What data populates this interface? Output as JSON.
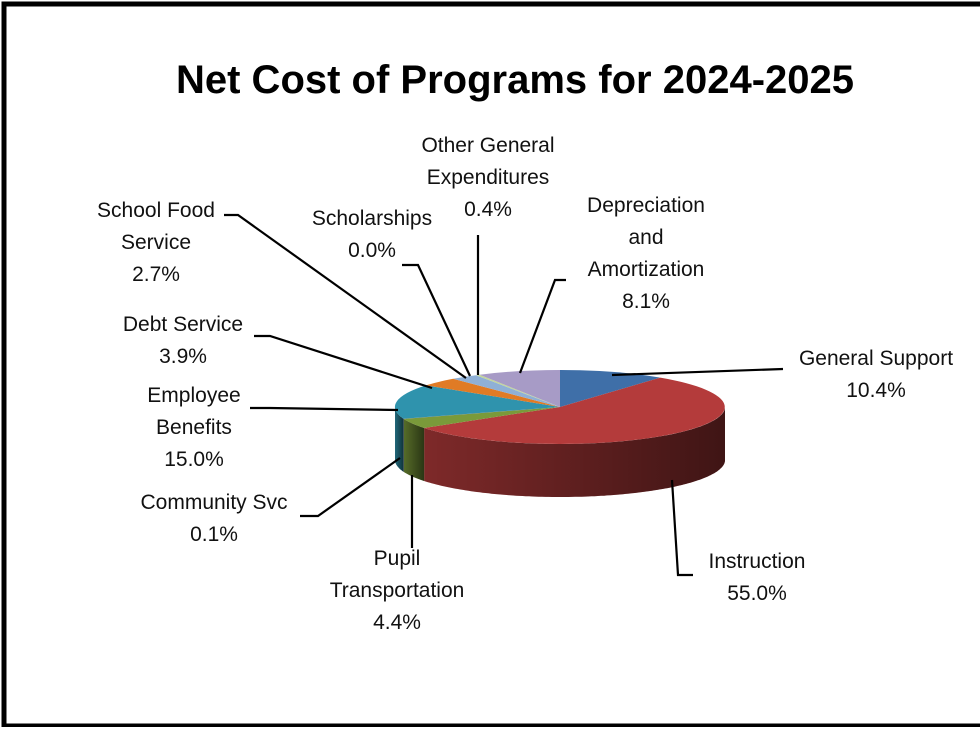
{
  "chart_data": {
    "type": "pie",
    "title": "Net Cost of Programs for 2024-2025",
    "slices": [
      {
        "label": [
          "General Support",
          "10.4%"
        ],
        "value": 10.4,
        "color": "#3f6fa8"
      },
      {
        "label": [
          "Instruction",
          "55.0%"
        ],
        "value": 55.0,
        "color": "#b43b3b"
      },
      {
        "label": [
          "Pupil",
          "Transportation",
          "4.4%"
        ],
        "value": 4.4,
        "color": "#7a9a3a"
      },
      {
        "label": [
          "Community Svc",
          "0.1%"
        ],
        "value": 0.1,
        "color": "#6b4f8a"
      },
      {
        "label": [
          "Employee",
          "Benefits",
          "15.0%"
        ],
        "value": 15.0,
        "color": "#2f93ad"
      },
      {
        "label": [
          "Debt Service",
          "3.9%"
        ],
        "value": 3.9,
        "color": "#e07b25"
      },
      {
        "label": [
          "School Food",
          "Service",
          "2.7%"
        ],
        "value": 2.7,
        "color": "#8fb0d6"
      },
      {
        "label": [
          "Scholarships",
          "0.0%"
        ],
        "value": 0.0,
        "color": "#d99694"
      },
      {
        "label": [
          "Other General",
          "Expenditures",
          "0.4%"
        ],
        "value": 0.4,
        "color": "#c3d69b"
      },
      {
        "label": [
          "Depreciation",
          "and",
          "Amortization",
          "8.1%"
        ],
        "value": 8.1,
        "color": "#a79bc6"
      }
    ]
  }
}
